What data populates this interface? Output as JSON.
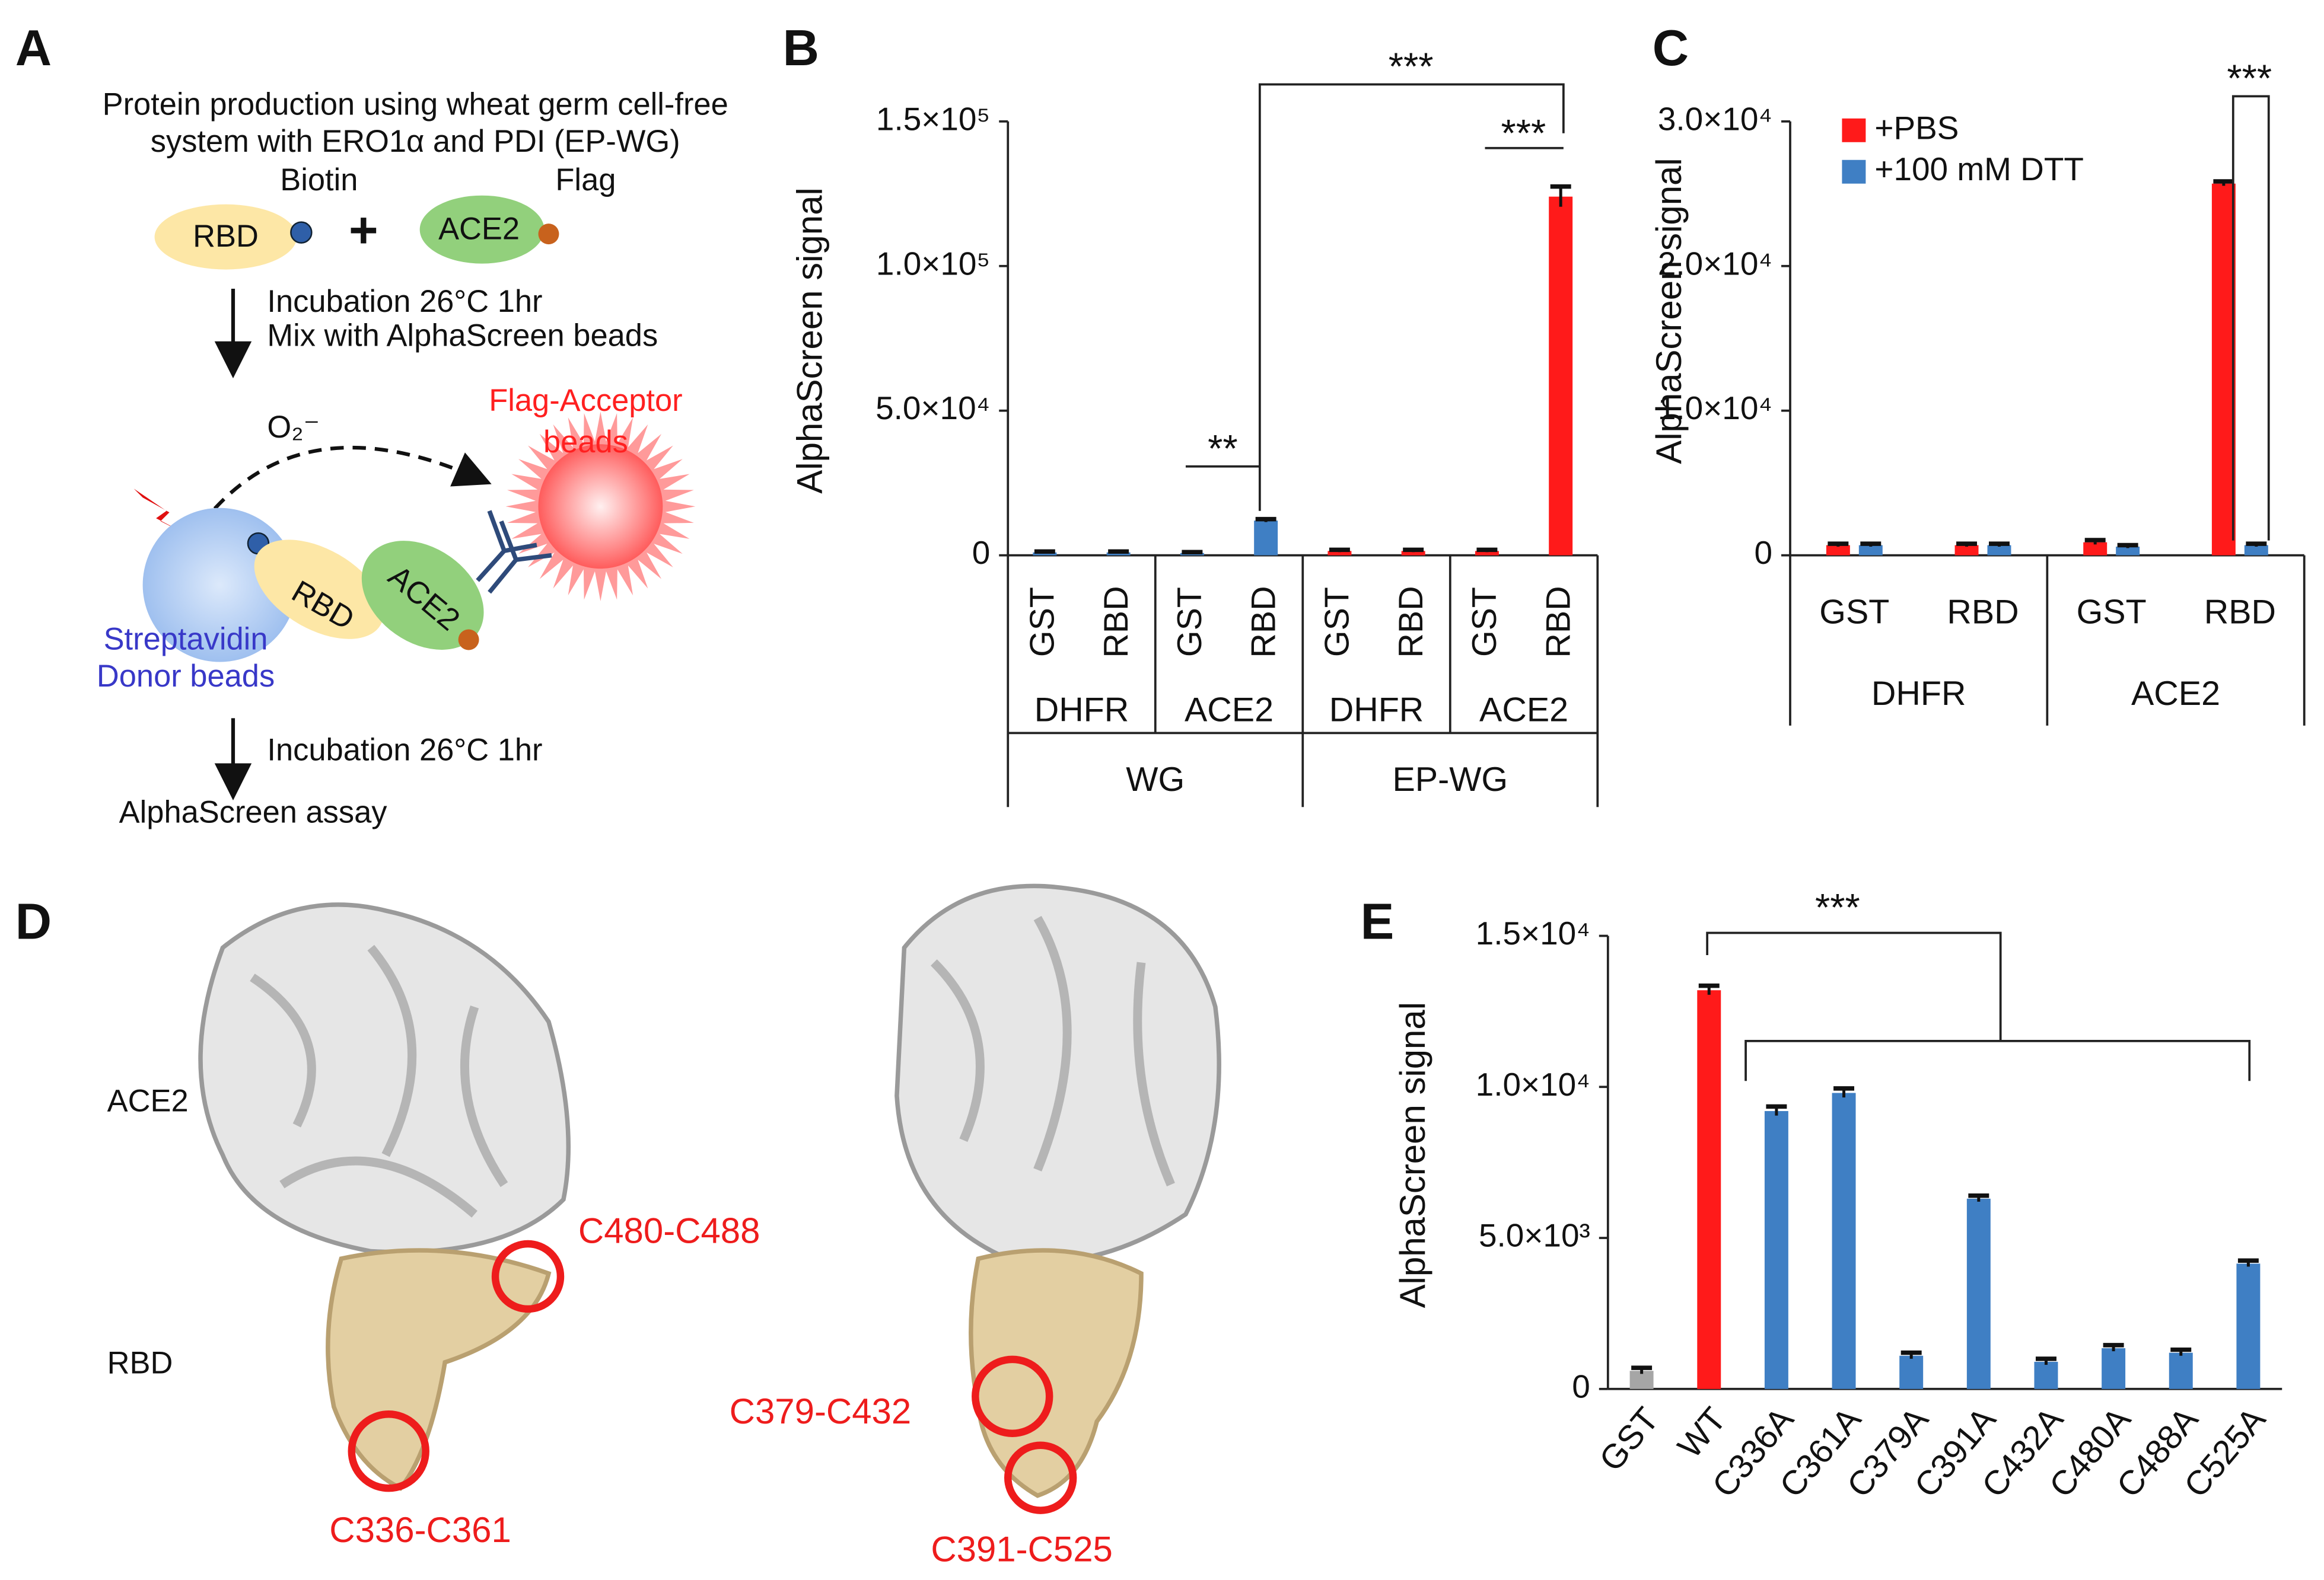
{
  "panel_a": {
    "label": "A",
    "title_lines": [
      "Protein production using wheat germ cell-free",
      "system with ERO1α and PDI (EP-WG)"
    ],
    "rbd": "RBD",
    "biotin": "Biotin",
    "plus": "+",
    "ace2": "ACE2",
    "flag": "Flag",
    "step1_lines": [
      "Incubation 26°C 1hr",
      "Mix with AlphaScreen beads"
    ],
    "o2": "O₂⁻",
    "acceptor_lines": [
      "Flag-Acceptor",
      "beads"
    ],
    "complex_rbd": "RBD",
    "complex_ace2": "ACE2",
    "donor_lines": [
      "Streptavidin",
      "Donor beads"
    ],
    "step2": "Incubation 26°C 1hr",
    "result": "AlphaScreen assay"
  },
  "panel_d": {
    "label": "D",
    "ace2": "ACE2",
    "rbd": "RBD",
    "sites": [
      "C480-C488",
      "C336-C361",
      "C379-C432",
      "C391-C525"
    ]
  },
  "chart_data": [
    {
      "type": "bar",
      "panel": "B",
      "y_label": "AlphaScreen signal",
      "categories": [
        "GST",
        "RBD",
        "GST",
        "RBD",
        "GST",
        "RBD",
        "GST",
        "RBD"
      ],
      "groups": [
        "DHFR",
        "ACE2",
        "DHFR",
        "ACE2"
      ],
      "supergroups": [
        "WG",
        "EP-WG"
      ],
      "series": [
        {
          "colors": [
            "#3f7fc4",
            "#3f7fc4",
            "#3f7fc4",
            "#3f7fc4",
            "#ff1a1a",
            "#ff1a1a",
            "#ff1a1a",
            "#ff1a1a"
          ],
          "values": [
            1000,
            1000,
            800,
            12000,
            1500,
            1500,
            1500,
            124000
          ],
          "errors": [
            300,
            300,
            300,
            500,
            400,
            400,
            400,
            3500
          ]
        }
      ],
      "ylim": [
        0,
        150000
      ],
      "yticks": [
        0,
        {
          "value": 50000,
          "label": "5.0×10⁴"
        },
        {
          "value": 100000,
          "label": "1.0×10⁵"
        },
        {
          "value": 150000,
          "label": "1.5×10⁵"
        }
      ],
      "annotations": [
        "**",
        "***",
        "***"
      ]
    },
    {
      "type": "bar",
      "panel": "C",
      "y_label": "AlphaScreen signal",
      "categories": [
        "GST",
        "RBD",
        "GST",
        "RBD"
      ],
      "groups": [
        "DHFR",
        "ACE2"
      ],
      "series": [
        {
          "name": "+PBS",
          "color": "#ff1a1a",
          "values": [
            700,
            700,
            900,
            25700
          ],
          "errors": [
            100,
            100,
            150,
            150
          ]
        },
        {
          "name": "+100 mM DTT",
          "color": "#3f7fc4",
          "values": [
            700,
            700,
            600,
            700
          ],
          "errors": [
            100,
            100,
            100,
            100
          ]
        }
      ],
      "ylim": [
        0,
        30000
      ],
      "yticks": [
        0,
        {
          "value": 10000,
          "label": "1.0×10⁴"
        },
        {
          "value": 20000,
          "label": "2.0×10⁴"
        },
        {
          "value": 30000,
          "label": "3.0×10⁴"
        }
      ],
      "legend": "upper left",
      "annotations": [
        "***"
      ]
    },
    {
      "type": "bar",
      "panel": "E",
      "y_label": "AlphaScreen signal",
      "categories": [
        "GST",
        "WT",
        "C336A",
        "C361A",
        "C379A",
        "C391A",
        "C432A",
        "C480A",
        "C488A",
        "C525A"
      ],
      "series": [
        {
          "colors": [
            "#a6a6a6",
            "#ff1a1a",
            "#3f7fc4",
            "#3f7fc4",
            "#3f7fc4",
            "#3f7fc4",
            "#3f7fc4",
            "#3f7fc4",
            "#3f7fc4",
            "#3f7fc4"
          ],
          "values": [
            600,
            13200,
            9200,
            9800,
            1100,
            6300,
            900,
            1350,
            1200,
            4150
          ],
          "errors": [
            100,
            150,
            150,
            150,
            100,
            100,
            100,
            100,
            100,
            100
          ]
        }
      ],
      "ylim": [
        0,
        15000
      ],
      "yticks": [
        0,
        {
          "value": 5000,
          "label": "5.0×10³"
        },
        {
          "value": 10000,
          "label": "1.0×10⁴"
        },
        {
          "value": 15000,
          "label": "1.5×10⁴"
        }
      ],
      "annotations": [
        "***"
      ]
    }
  ]
}
